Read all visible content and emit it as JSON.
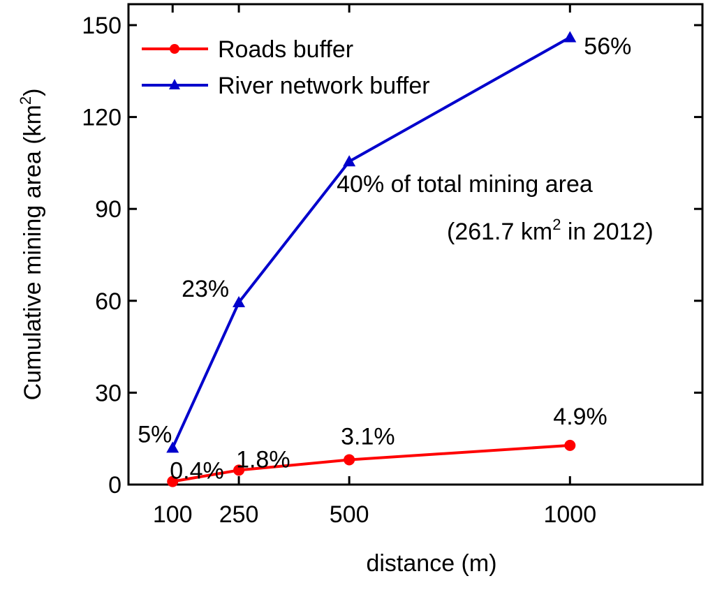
{
  "chart_data": {
    "type": "line",
    "xlabel": "distance (m)",
    "ylabel_main": "Cumulative mining area (km",
    "ylabel_sup": "2",
    "ylabel_end": ")",
    "ylim": [
      0,
      150
    ],
    "xlim": [
      0,
      1300
    ],
    "yticks": [
      0,
      30,
      60,
      90,
      120,
      150
    ],
    "xticks": [
      100,
      250,
      500,
      1000
    ],
    "grid": false,
    "legend_position": "top-left",
    "series": [
      {
        "name": "Roads buffer",
        "color": "#ff0000",
        "marker": "circle",
        "x": [
          100,
          250,
          500,
          1000
        ],
        "y": [
          1.0,
          4.7,
          8.1,
          12.8
        ],
        "labels": [
          "0.4%",
          "1.8%",
          "3.1%",
          "4.9%"
        ]
      },
      {
        "name": "River network buffer",
        "color": "#0000cc",
        "marker": "triangle",
        "x": [
          100,
          250,
          500,
          1000
        ],
        "y": [
          12.0,
          59.5,
          105.5,
          146.0
        ],
        "labels": [
          "5%",
          "23%",
          "40% of total mining area",
          "56%"
        ]
      }
    ],
    "annotation": {
      "line_start": "(261.7 km",
      "sup": "2",
      "line_end": " in 2012)"
    }
  }
}
